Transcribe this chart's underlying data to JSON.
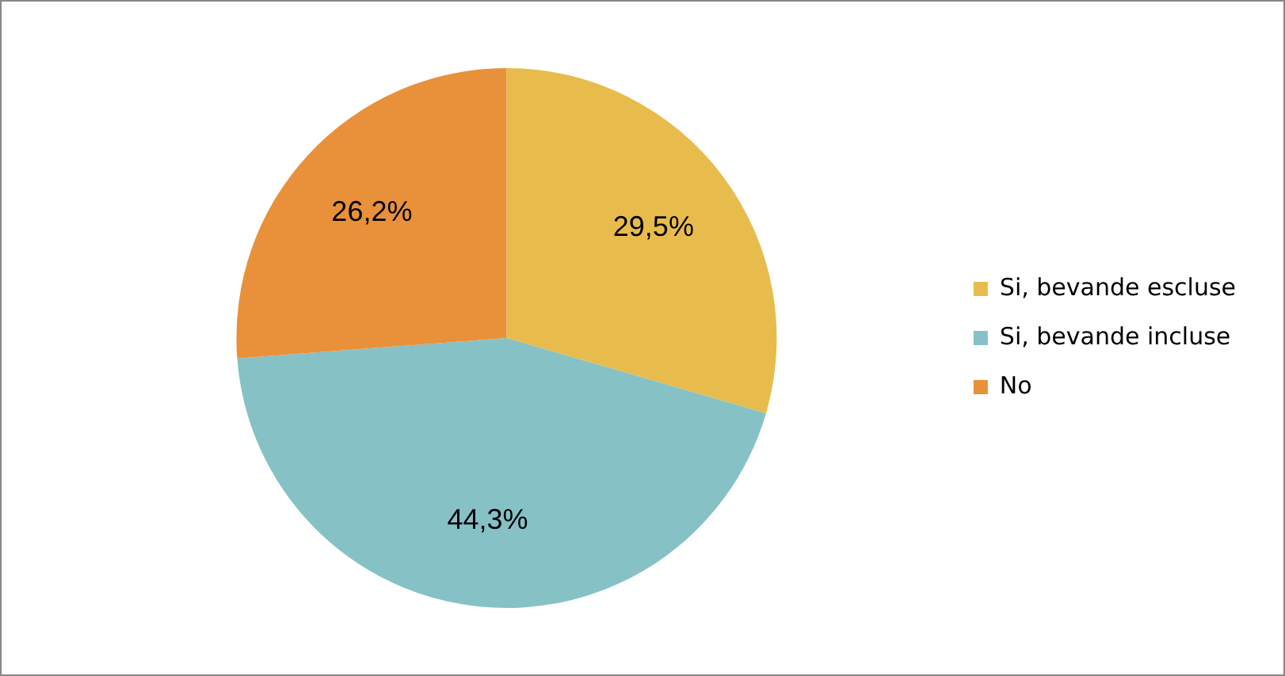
{
  "chart_data": {
    "type": "pie",
    "categories": [
      "Si, bevande escluse",
      "Si, bevande incluse",
      "No"
    ],
    "values": [
      29.5,
      44.3,
      26.2
    ],
    "colors": [
      "#e8bc4c",
      "#86c1c6",
      "#e8913a"
    ],
    "value_labels": [
      "29,5%",
      "44,3%",
      "26,2%"
    ],
    "legend": "right"
  }
}
